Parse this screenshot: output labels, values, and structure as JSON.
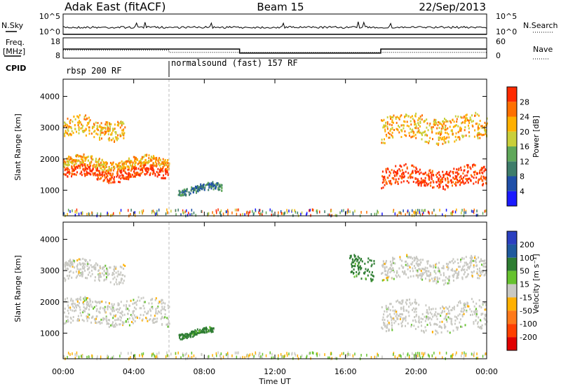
{
  "header": {
    "station": "Adak East (fitACF)",
    "beam": "Beam 15",
    "date": "22/Sep/2013"
  },
  "side_labels": {
    "nsky": "N.Sky",
    "nsearch": "N.Search",
    "freq_line1": "Freq.",
    "freq_line2": "[MHz]",
    "nave": "Nave",
    "cpid": "CPID"
  },
  "cpid_modes": [
    {
      "label": "rbsp 200 RF",
      "start_hour": 0
    },
    {
      "label": "normalsound (fast) 157 RF",
      "start_hour": 6
    }
  ],
  "x_axis": {
    "label": "Time UT",
    "ticks": [
      "00:00",
      "04:00",
      "08:00",
      "12:00",
      "16:00",
      "20:00",
      "00:00"
    ],
    "tick_hours": [
      0,
      4,
      8,
      12,
      16,
      20,
      24
    ]
  },
  "panels": {
    "power": {
      "ylabel": "Slant Range [km]",
      "yticks": [
        "1000",
        "2000",
        "3000",
        "4000"
      ],
      "colorbar_label": "Power [dB]",
      "colorbar_ticks": [
        "4",
        "8",
        "12",
        "16",
        "20",
        "24",
        "28"
      ],
      "colors": [
        "#1a1aff",
        "#1f4fa8",
        "#3e7d6a",
        "#5fa85a",
        "#c9cf3a",
        "#ffb000",
        "#ff7000",
        "#ff2a00"
      ]
    },
    "velocity": {
      "ylabel": "Slant Range [km]",
      "yticks": [
        "1000",
        "2000",
        "3000",
        "4000"
      ],
      "colorbar_label": "Velocity [m s⁻¹]",
      "colorbar_ticks": [
        "200",
        "100",
        "50",
        "15",
        "-15",
        "-50",
        "-100",
        "-200"
      ],
      "colors": [
        "#2a3fc0",
        "#1f5a9e",
        "#2e7d32",
        "#66c22e",
        "#c9c9c3",
        "#ffb000",
        "#ff7a1a",
        "#ff4000",
        "#e00000"
      ]
    }
  },
  "top_axes": {
    "nsky_ticks": [
      "10^5",
      "10^0"
    ],
    "freq_ticks": [
      "18",
      "8"
    ],
    "nave_ticks": [
      "60",
      "0"
    ]
  },
  "chart_data": {
    "type": "heatmap",
    "title": "Adak East (fitACF)",
    "xlabel": "Time UT",
    "ylabel": "Slant Range [km]",
    "xlim_hours": [
      0,
      24
    ],
    "ylim_km": [
      180,
      4550
    ],
    "freq_MHz": [
      {
        "start_hour": 0,
        "end_hour": 6,
        "value": 12.5
      },
      {
        "start_hour": 6,
        "end_hour": 10,
        "value": 12.5
      },
      {
        "start_hour": 10,
        "end_hour": 18,
        "value": 10.5
      },
      {
        "start_hour": 18,
        "end_hour": 24,
        "value": 12.5
      }
    ],
    "nave": [
      {
        "start_hour": 0,
        "end_hour": 6,
        "value": 24
      },
      {
        "start_hour": 6,
        "end_hour": 24,
        "value": 17
      }
    ],
    "power_bands": [
      {
        "name": "low band",
        "t0": 0.0,
        "t1": 6.0,
        "r0": 1400,
        "r1": 1750,
        "power_db": 28
      },
      {
        "name": "low band upper",
        "t0": 0.0,
        "t1": 6.0,
        "r0": 1750,
        "r1": 2050,
        "power_db": 20
      },
      {
        "name": "mid band",
        "t0": 0.0,
        "t1": 3.5,
        "r0": 2700,
        "r1": 3300,
        "power_db": 20
      },
      {
        "name": "morning streak",
        "t0": 6.5,
        "t1": 9.0,
        "r0": 950,
        "r1": 1150,
        "power_db": 8
      },
      {
        "name": "evening low band",
        "t0": 18.0,
        "t1": 24.0,
        "r0": 1150,
        "r1": 1750,
        "power_db": 28
      },
      {
        "name": "evening mid band",
        "t0": 18.0,
        "t1": 24.0,
        "r0": 2600,
        "r1": 3400,
        "power_db": 20
      }
    ],
    "velocity_bands": [
      {
        "name": "low band",
        "t0": 0.0,
        "t1": 6.0,
        "r0": 1300,
        "r1": 2100,
        "velocity": 0
      },
      {
        "name": "mid band",
        "t0": 0.0,
        "t1": 3.5,
        "r0": 2700,
        "r1": 3300,
        "velocity": 0
      },
      {
        "name": "morning streak",
        "t0": 6.5,
        "t1": 8.5,
        "r0": 950,
        "r1": 1100,
        "velocity": 50
      },
      {
        "name": "evening low band",
        "t0": 18.0,
        "t1": 24.0,
        "r0": 1100,
        "r1": 2000,
        "velocity": 0
      },
      {
        "name": "evening mid band",
        "t0": 18.0,
        "t1": 24.0,
        "r0": 2700,
        "r1": 3400,
        "velocity": 0
      },
      {
        "name": "slanted streak",
        "t0": 16.2,
        "t1": 17.6,
        "r0": 2800,
        "r1": 3500,
        "velocity": 50
      }
    ]
  }
}
